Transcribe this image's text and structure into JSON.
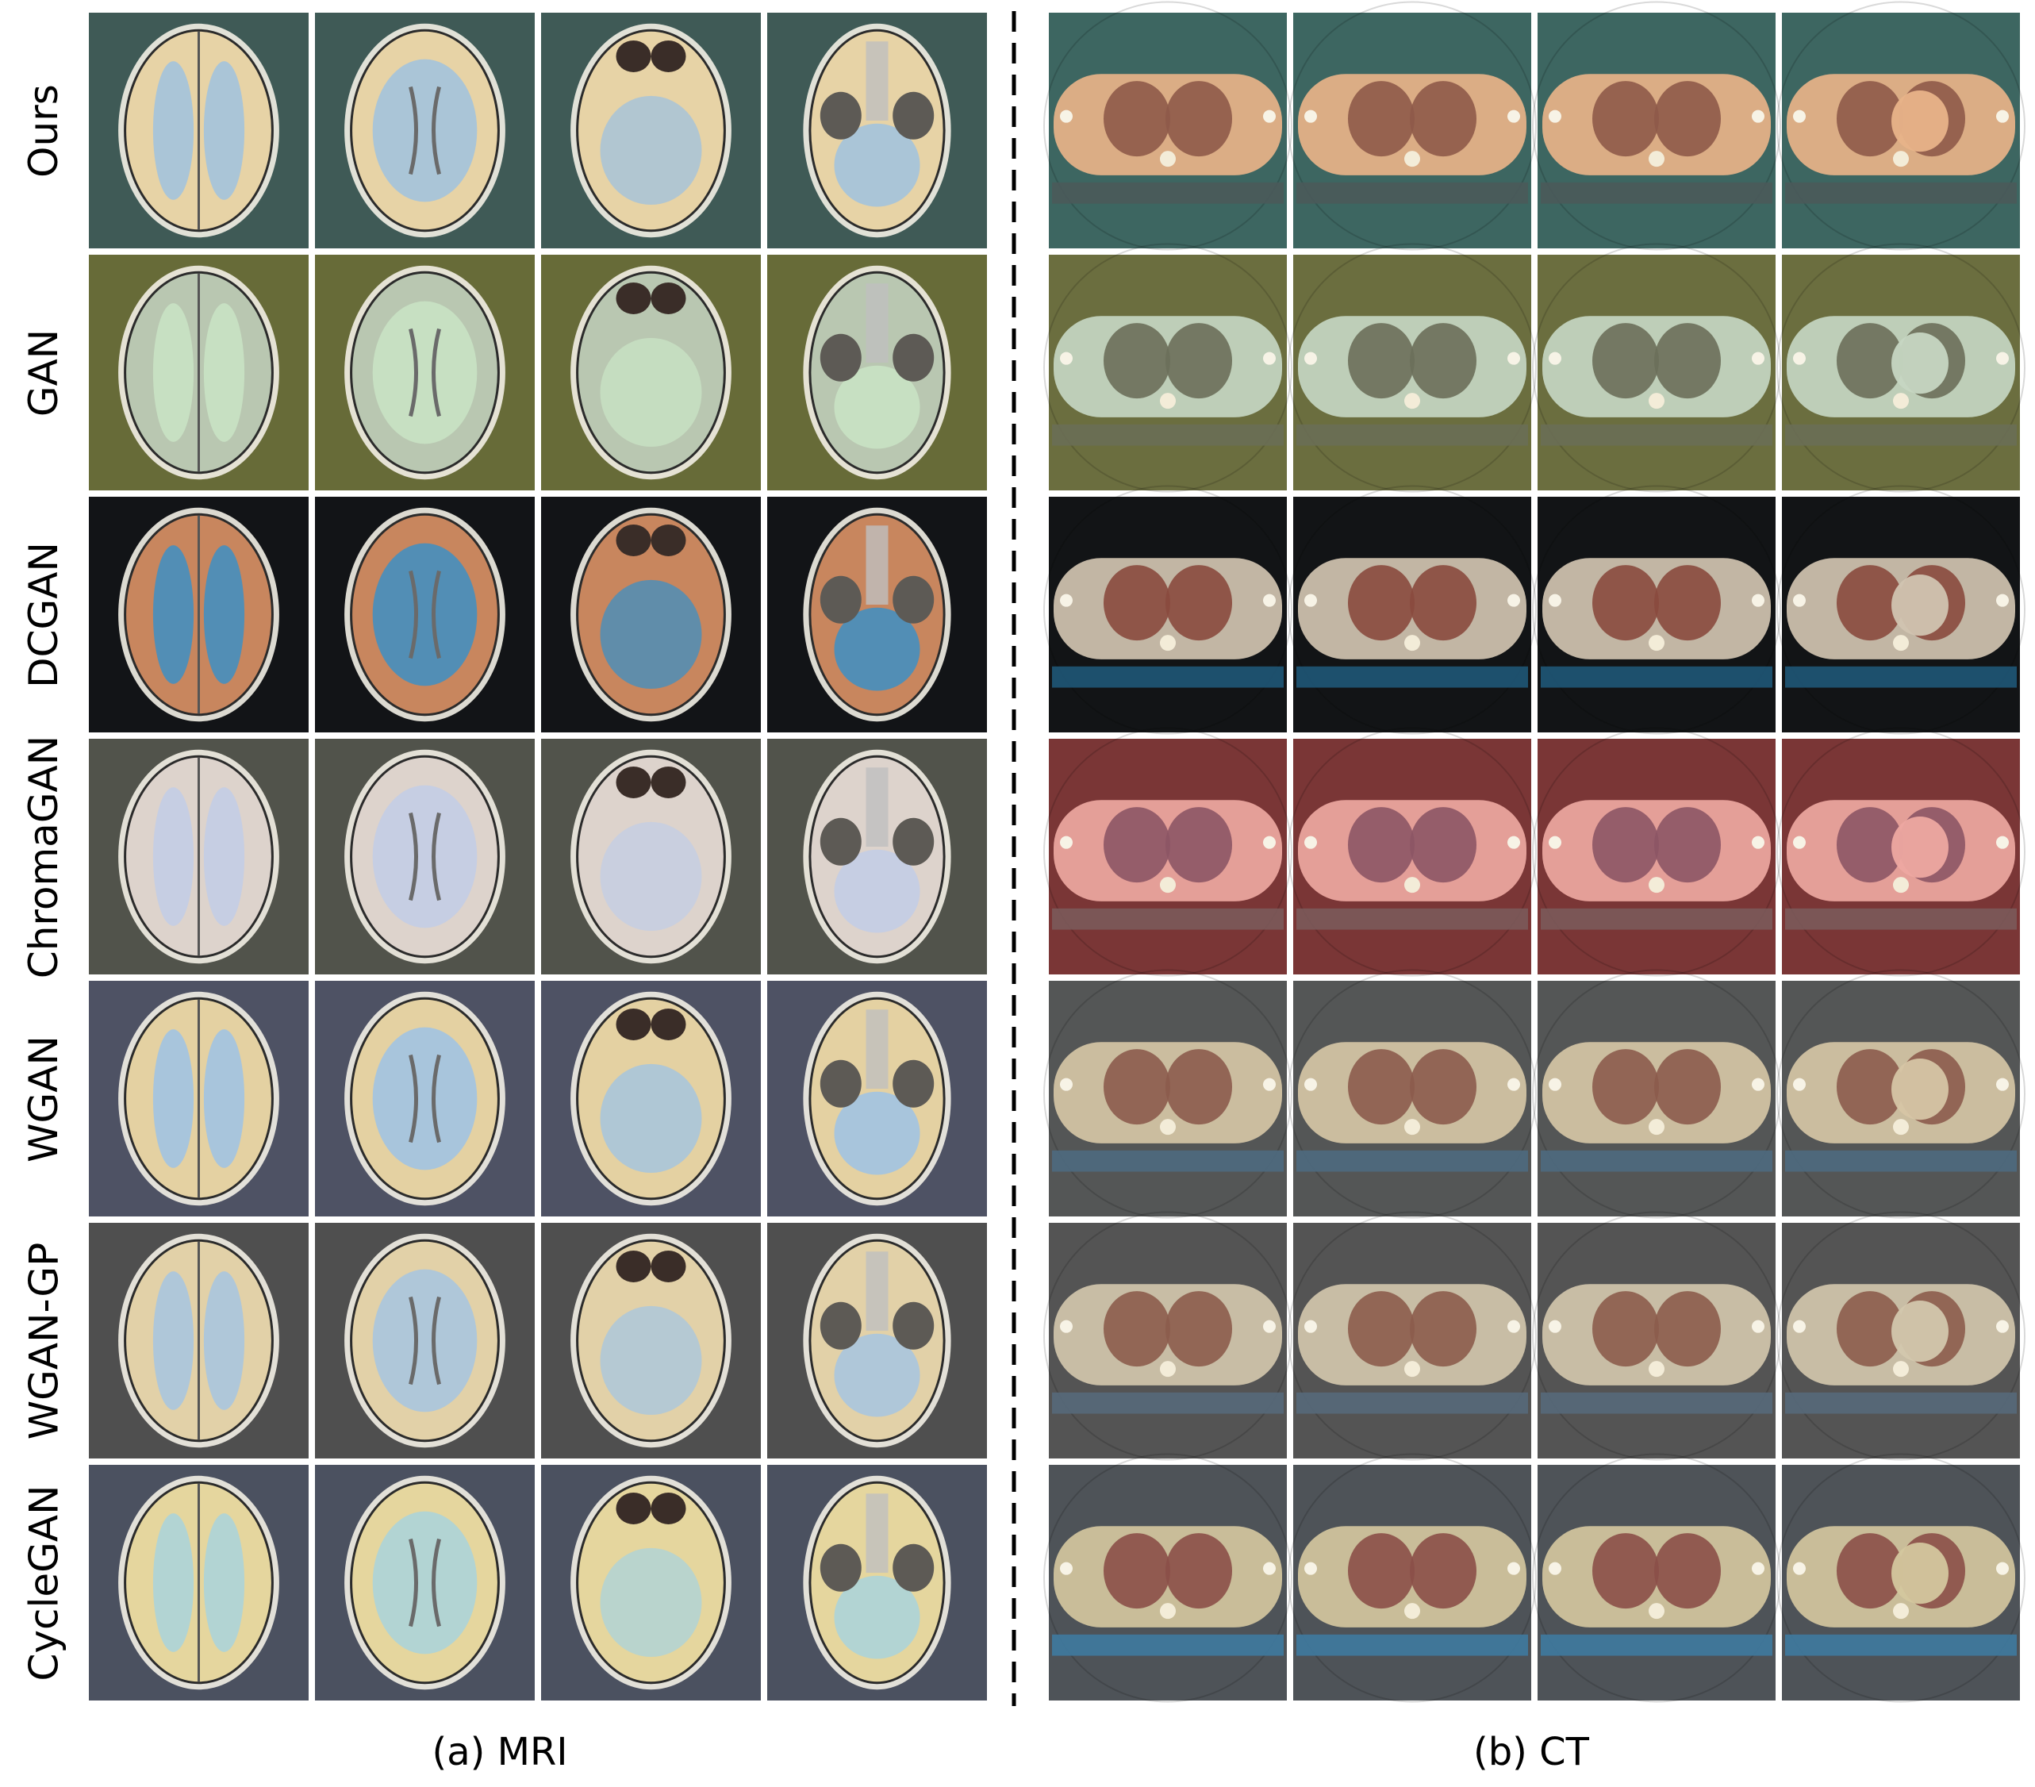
{
  "figure": {
    "rows": [
      {
        "label": "Ours",
        "mri_bg": "#3f5a56",
        "mri_brain": "#e7d3a6",
        "mri_wm": "#9fc2df",
        "ct_bg": "#3d6661",
        "ct_body": "#e8b389",
        "ct_lung": "#8e5a49",
        "ct_band": "#4a5a5a"
      },
      {
        "label": "GAN",
        "mri_bg": "#676b38",
        "mri_brain": "#b9c7b1",
        "mri_wm": "#c9e4c5",
        "ct_bg": "#6b6e3f",
        "ct_body": "#c6d6c2",
        "ct_lung": "#6b6f5a",
        "ct_band": "#6a6e55"
      },
      {
        "label": "DCGAN",
        "mri_bg": "#121417",
        "mri_brain": "#c8865e",
        "mri_wm": "#3d8fc4",
        "ct_bg": "#121416",
        "ct_body": "#d1c4b1",
        "ct_lung": "#8a4a3e",
        "ct_band": "#1f5777"
      },
      {
        "label": "ChromaGAN",
        "mri_bg": "#51534b",
        "mri_brain": "#ddd3cc",
        "mri_wm": "#c2cde6",
        "ct_bg": "#7a3636",
        "ct_body": "#eda8a1",
        "ct_lung": "#8c5565",
        "ct_band": "#7b5a5a"
      },
      {
        "label": "WGAN",
        "mri_bg": "#4e5264",
        "mri_brain": "#e4d1a2",
        "mri_wm": "#9dc3e6",
        "ct_bg": "#545656",
        "ct_body": "#d6c5a5",
        "ct_lung": "#8c5b4c",
        "ct_band": "#4e6a80"
      },
      {
        "label": "WGAN-GP",
        "mri_bg": "#4f4f4f",
        "mri_brain": "#e2d1a8",
        "mri_wm": "#a6c5e2",
        "ct_bg": "#545454",
        "ct_body": "#d3c7ad",
        "ct_lung": "#8c5c4d",
        "ct_band": "#56697a"
      },
      {
        "label": "CycleGAN",
        "mri_bg": "#4b5160",
        "mri_brain": "#e5d69e",
        "mri_wm": "#a9d3dc",
        "ct_bg": "#4e5358",
        "ct_body": "#d4c79e",
        "ct_lung": "#8b4f48",
        "ct_band": "#3f7aa0"
      }
    ]
  },
  "captions": {
    "mri": "(a) MRI",
    "ct": "(b) CT"
  }
}
